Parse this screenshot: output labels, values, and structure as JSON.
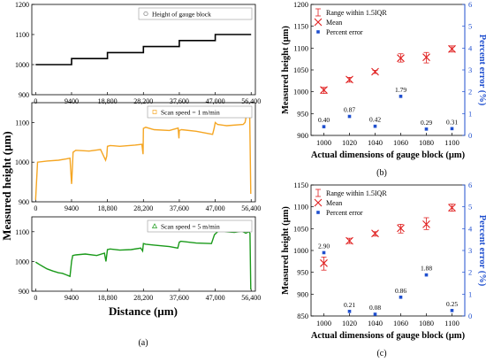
{
  "figure": {
    "left_ylabel": "Measured height (µm)",
    "left_xlabel": "Distance (µm)",
    "caption_a": "(a)",
    "caption_b": "(b)",
    "caption_c": "(c)"
  },
  "chart_data": [
    {
      "type": "line",
      "panel": "a-top",
      "legend": "Height of gauge block",
      "x_ticks": [
        "0",
        "9400",
        "18,800",
        "28,200",
        "37,600",
        "47,000",
        "56,400"
      ],
      "x_tick_values": [
        0,
        9400,
        18800,
        28200,
        37600,
        47000,
        56400
      ],
      "y_ticks": [
        900,
        1000,
        1100,
        1200
      ],
      "xlim": [
        -1000,
        57500
      ],
      "ylim": [
        900,
        1200
      ],
      "color": "#000000",
      "series": [
        {
          "x": [
            0,
            9400,
            9400,
            18800,
            18800,
            28200,
            28200,
            37600,
            37600,
            47000,
            47000,
            56400
          ],
          "y": [
            1000,
            1000,
            1020,
            1020,
            1040,
            1040,
            1060,
            1060,
            1080,
            1080,
            1100,
            1100
          ]
        }
      ]
    },
    {
      "type": "line",
      "panel": "a-middle",
      "legend": "Scan speed = 1 m/min",
      "x_ticks": [
        "0",
        "9400",
        "18,800",
        "28,200",
        "37,600",
        "47,000",
        "56,400"
      ],
      "x_tick_values": [
        0,
        9400,
        18800,
        28200,
        37600,
        47000,
        56400
      ],
      "y_ticks": [
        900,
        1000,
        1100
      ],
      "xlim": [
        -1000,
        57500
      ],
      "ylim": [
        900,
        1150
      ],
      "color": "#f5a623",
      "series": [
        {
          "x": [
            0,
            500,
            3000,
            6000,
            8000,
            9000,
            9400,
            9500,
            9800,
            10500,
            14000,
            17000,
            18300,
            18600,
            18800,
            19500,
            22000,
            26000,
            27800,
            28100,
            28200,
            28800,
            31000,
            35000,
            37300,
            37500,
            37600,
            38200,
            42000,
            46300,
            46700,
            47000,
            47600,
            50000,
            54300,
            54800,
            55500,
            56000,
            56300
          ],
          "y": [
            905,
            1000,
            1003,
            1005,
            1008,
            1010,
            945,
            960,
            1025,
            1030,
            1028,
            1032,
            1005,
            1015,
            1040,
            1042,
            1040,
            1043,
            1045,
            1020,
            1085,
            1088,
            1082,
            1080,
            1086,
            1060,
            1080,
            1082,
            1078,
            1070,
            1085,
            1100,
            1095,
            1092,
            1095,
            1100,
            1135,
            1135,
            920
          ]
        }
      ]
    },
    {
      "type": "line",
      "panel": "a-bottom",
      "legend": "Scan speed = 5 m/min",
      "x_ticks": [
        "0",
        "9400",
        "18,800",
        "28,200",
        "37,600",
        "47,000",
        "56,400"
      ],
      "x_tick_values": [
        0,
        9400,
        18800,
        28200,
        37600,
        47000,
        56400
      ],
      "y_ticks": [
        900,
        1000,
        1100
      ],
      "xlim": [
        -1000,
        57500
      ],
      "ylim": [
        900,
        1150
      ],
      "color": "#1a9a1a",
      "series": [
        {
          "x": [
            0,
            1000,
            2000,
            3000,
            4500,
            6000,
            7000,
            8000,
            9000,
            9400,
            9700,
            10500,
            13000,
            16000,
            18000,
            18400,
            18800,
            19500,
            22000,
            25000,
            27500,
            28000,
            28200,
            28800,
            31000,
            35000,
            37200,
            37600,
            38000,
            42000,
            46000,
            46800,
            47200,
            48000,
            50000,
            52000,
            54000,
            55000,
            55800,
            56100,
            56300
          ],
          "y": [
            998,
            990,
            982,
            975,
            968,
            962,
            960,
            955,
            950,
            1000,
            1020,
            1022,
            1025,
            1020,
            1028,
            1000,
            1040,
            1042,
            1038,
            1040,
            1045,
            1035,
            1060,
            1058,
            1055,
            1050,
            1045,
            1065,
            1068,
            1062,
            1060,
            1090,
            1095,
            1105,
            1100,
            1098,
            1102,
            1095,
            1100,
            1095,
            905
          ]
        }
      ]
    },
    {
      "type": "scatter",
      "panel": "b",
      "xlabel": "Actual dimensions of gauge block (µm)",
      "ylabel": "Measured height (µm)",
      "y2label": "Percent error (%)",
      "x_ticks": [
        1000,
        1020,
        1040,
        1060,
        1080,
        1100
      ],
      "y_ticks": [
        900,
        950,
        1000,
        1050,
        1100,
        1150,
        1200
      ],
      "y2_ticks": [
        0,
        1,
        2,
        3,
        4,
        5,
        6
      ],
      "xlim": [
        990,
        1110
      ],
      "ylim": [
        900,
        1200
      ],
      "y2lim": [
        0,
        6
      ],
      "legend": [
        "Range within 1.5IQR",
        "Mean",
        "Percent error"
      ],
      "mean": [
        1004,
        1028,
        1046,
        1077,
        1079,
        1098
      ],
      "err_low": [
        996,
        1022,
        1042,
        1068,
        1066,
        1091
      ],
      "err_high": [
        1010,
        1033,
        1049,
        1087,
        1090,
        1105
      ],
      "percent_error": [
        0.4,
        0.87,
        0.42,
        1.79,
        0.29,
        0.31
      ],
      "percent_error_labels": [
        "0.40",
        "0.87",
        "0.42",
        "1.79",
        "0.29",
        "0.31"
      ]
    },
    {
      "type": "scatter",
      "panel": "c",
      "xlabel": "Actual dimensions of gauge block (µm)",
      "ylabel": "Measured height (µm)",
      "y2label": "Percent error (%)",
      "x_ticks": [
        1000,
        1020,
        1040,
        1060,
        1080,
        1100
      ],
      "y_ticks": [
        850,
        900,
        950,
        1000,
        1050,
        1100,
        1150
      ],
      "y2_ticks": [
        0,
        1,
        2,
        3,
        4,
        5,
        6
      ],
      "xlim": [
        990,
        1110
      ],
      "ylim": [
        850,
        1150
      ],
      "y2lim": [
        0,
        6
      ],
      "legend": [
        "Range within 1.5IQR",
        "Mean",
        "Percent error"
      ],
      "mean": [
        971,
        1022,
        1039,
        1051,
        1060,
        1098
      ],
      "err_low": [
        955,
        1016,
        1033,
        1040,
        1048,
        1090
      ],
      "err_high": [
        985,
        1028,
        1043,
        1060,
        1075,
        1106
      ],
      "percent_error": [
        2.9,
        0.21,
        0.08,
        0.86,
        1.88,
        0.25
      ],
      "percent_error_labels": [
        "2.90",
        "0.21",
        "0.08",
        "0.86",
        "1.88",
        "0.25"
      ]
    }
  ]
}
